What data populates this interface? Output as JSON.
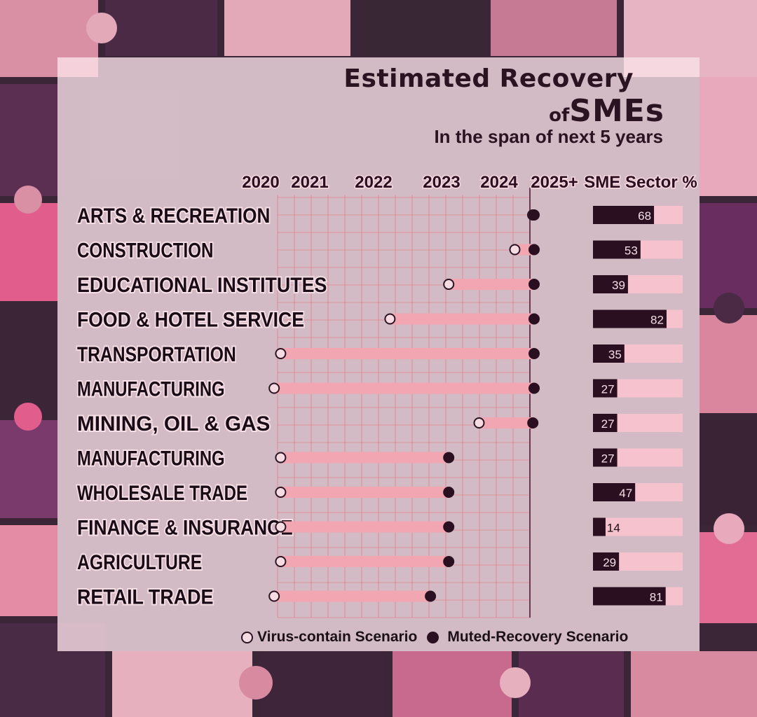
{
  "title_line1": "Estimated Recovery",
  "title_of": "of",
  "title_sme": "SMEs",
  "subtitle": "In the span of next 5 years",
  "legend": {
    "open_label": "Virus-contain Scenario",
    "filled_label": "Muted-Recovery Scenario"
  },
  "colors": {
    "bar": "#f2a6b2",
    "dot": "#2a0f20",
    "grid": "#e8646e",
    "share_bar": "#2a0f20",
    "share_track": "#f6c2cd"
  },
  "chart_data": {
    "type": "range-bar",
    "x_ticks": [
      "2020",
      "2021",
      "2022",
      "2023",
      "2024",
      "2025+"
    ],
    "share_header": "SME Sector %",
    "rows": [
      {
        "sector": "ARTS & RECREATION",
        "virus_contain": 2024.0,
        "muted_recovery": 2025.0,
        "sme_share": 68
      },
      {
        "sector": "CONSTRUCTION",
        "virus_contain": 2023.7,
        "muted_recovery": 2025.0,
        "sme_share": 53
      },
      {
        "sector": "EDUCATIONAL INSTITUTES",
        "virus_contain": 2022.6,
        "muted_recovery": 2025.0,
        "sme_share": 39
      },
      {
        "sector": "FOOD & HOTEL SERVICE",
        "virus_contain": 2021.8,
        "muted_recovery": 2025.0,
        "sme_share": 82
      },
      {
        "sector": "TRANSPORTATION",
        "virus_contain": 2020.2,
        "muted_recovery": 2025.0,
        "sme_share": 35
      },
      {
        "sector": "MANUFACTURING",
        "virus_contain": 2019.95,
        "muted_recovery": 2025.0,
        "sme_share": 27
      },
      {
        "sector": "MINING, OIL & GAS",
        "virus_contain": 2023.1,
        "muted_recovery": 2024.1,
        "sme_share": 27
      },
      {
        "sector": "MANUFACTURING",
        "virus_contain": 2020.2,
        "muted_recovery": 2022.6,
        "sme_share": 27
      },
      {
        "sector": "WHOLESALE TRADE",
        "virus_contain": 2020.2,
        "muted_recovery": 2022.6,
        "sme_share": 47
      },
      {
        "sector": "FINANCE & INSURANCE",
        "virus_contain": 2020.2,
        "muted_recovery": 2022.6,
        "sme_share": 14
      },
      {
        "sector": "AGRICULTURE",
        "virus_contain": 2020.2,
        "muted_recovery": 2022.6,
        "sme_share": 29
      },
      {
        "sector": "RETAIL TRADE",
        "virus_contain": 2019.95,
        "muted_recovery": 2022.3,
        "sme_share": 81
      }
    ]
  }
}
